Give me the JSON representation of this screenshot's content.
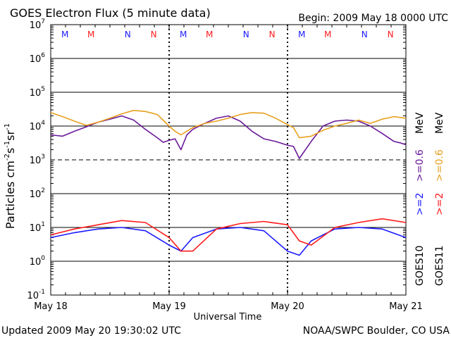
{
  "chart_data": {
    "type": "line",
    "title": "GOES Electron Flux (5 minute data)",
    "begin_label": "Begin: 2009 May 18 0000 UTC",
    "updated_label": "Updated 2009 May 20 19:30:02 UTC",
    "credit_label": "NOAA/SWPC Boulder, CO USA",
    "xlabel": "Universal Time",
    "ylabel": "Particles cm",
    "ylabel_sup1": "-2",
    "ylabel_mid1": "s",
    "ylabel_sup2": "-1",
    "ylabel_mid2": "sr",
    "ylabel_sup3": "-1",
    "yscale": "log",
    "ylim": [
      0.1,
      10000000
    ],
    "xlim": [
      "2009-05-18 00:00",
      "2009-05-21 00:00"
    ],
    "x_ticks": [
      "May 18",
      "May 19",
      "May 20",
      "May 21"
    ],
    "y_ticks": [
      {
        "base": "10",
        "exp": "-1"
      },
      {
        "base": "10",
        "exp": "0"
      },
      {
        "base": "10",
        "exp": "1"
      },
      {
        "base": "10",
        "exp": "2"
      },
      {
        "base": "10",
        "exp": "3"
      },
      {
        "base": "10",
        "exp": "4"
      },
      {
        "base": "10",
        "exp": "5"
      },
      {
        "base": "10",
        "exp": "6"
      },
      {
        "base": "10",
        "exp": "7"
      }
    ],
    "day_markers": [
      {
        "letter": "M",
        "color": "#1a1aff",
        "day": 0.12
      },
      {
        "letter": "M",
        "color": "#ff1a1a",
        "day": 0.34
      },
      {
        "letter": "N",
        "color": "#1a1aff",
        "day": 0.65
      },
      {
        "letter": "N",
        "color": "#ff1a1a",
        "day": 0.87
      },
      {
        "letter": "M",
        "color": "#1a1aff",
        "day": 1.12
      },
      {
        "letter": "M",
        "color": "#ff1a1a",
        "day": 1.34
      },
      {
        "letter": "N",
        "color": "#1a1aff",
        "day": 1.65
      },
      {
        "letter": "N",
        "color": "#ff1a1a",
        "day": 1.87
      },
      {
        "letter": "M",
        "color": "#1a1aff",
        "day": 2.12
      },
      {
        "letter": "M",
        "color": "#ff1a1a",
        "day": 2.34
      },
      {
        "letter": "N",
        "color": "#1a1aff",
        "day": 2.65
      },
      {
        "letter": "N",
        "color": "#ff1a1a",
        "day": 2.87
      }
    ],
    "legend": {
      "goes10": "GOES10",
      "goes11": "GOES11",
      "g10_ge2": ">=2",
      "g10_ge06": ">=0.6",
      "g11_ge2": ">=2",
      "g11_ge06": ">=0.6",
      "mev": "MeV"
    },
    "colors": {
      "goes10_ge2": "#1a1aff",
      "goes11_ge2": "#ff1a1a",
      "goes10_ge06": "#6a1a9a",
      "goes11_ge06": "#e8a020",
      "grid": "#000000"
    },
    "series": [
      {
        "name": ">=0.6 MeV",
        "satellite": "GOES10",
        "color": "#6a1a9a",
        "x": [
          0.0,
          0.1,
          0.2,
          0.3,
          0.4,
          0.5,
          0.6,
          0.7,
          0.8,
          0.9,
          0.95,
          1.0,
          1.05,
          1.1,
          1.15,
          1.2,
          1.3,
          1.4,
          1.5,
          1.6,
          1.7,
          1.8,
          1.9,
          2.0,
          2.05,
          2.1,
          2.2,
          2.3,
          2.4,
          2.5,
          2.6,
          2.7,
          2.8,
          2.9,
          2.95,
          3.0
        ],
        "y": [
          5500,
          5000,
          7000,
          9500,
          13000,
          16000,
          20000,
          15000,
          8000,
          4500,
          3300,
          3800,
          4200,
          2000,
          5500,
          8000,
          12000,
          17000,
          20000,
          14000,
          7000,
          4200,
          3500,
          2700,
          2500,
          1100,
          3500,
          10000,
          14000,
          15000,
          14000,
          10000,
          6000,
          3500,
          3200,
          2800
        ]
      },
      {
        "name": ">=0.6 MeV",
        "satellite": "GOES11",
        "color": "#e8a020",
        "x": [
          0.0,
          0.1,
          0.2,
          0.3,
          0.4,
          0.5,
          0.6,
          0.7,
          0.8,
          0.9,
          1.0,
          1.05,
          1.1,
          1.2,
          1.3,
          1.4,
          1.5,
          1.6,
          1.7,
          1.8,
          1.9,
          2.0,
          2.05,
          2.1,
          2.2,
          2.3,
          2.4,
          2.5,
          2.6,
          2.7,
          2.8,
          2.9,
          3.0
        ],
        "y": [
          25000,
          19000,
          14000,
          10500,
          13000,
          17000,
          23000,
          29000,
          27000,
          22000,
          10000,
          7000,
          5500,
          9000,
          12000,
          14000,
          17000,
          22000,
          25000,
          24000,
          17000,
          11000,
          9000,
          4500,
          5000,
          7500,
          10000,
          12000,
          15000,
          12000,
          16000,
          19000,
          17000
        ]
      },
      {
        "name": ">=2 MeV",
        "satellite": "GOES10",
        "color": "#1a1aff",
        "x": [
          0.0,
          0.2,
          0.4,
          0.6,
          0.8,
          1.0,
          1.1,
          1.2,
          1.4,
          1.6,
          1.8,
          2.0,
          2.1,
          2.2,
          2.4,
          2.6,
          2.8,
          3.0
        ],
        "y": [
          5,
          7,
          9,
          10,
          8,
          3,
          2,
          5,
          9,
          10,
          8,
          2,
          1.5,
          4,
          9,
          10,
          9,
          5
        ]
      },
      {
        "name": ">=2 MeV",
        "satellite": "GOES11",
        "color": "#ff1a1a",
        "x": [
          0.0,
          0.2,
          0.4,
          0.6,
          0.8,
          1.0,
          1.1,
          1.2,
          1.4,
          1.6,
          1.8,
          2.0,
          2.1,
          2.2,
          2.4,
          2.6,
          2.8,
          3.0
        ],
        "y": [
          6,
          9,
          12,
          16,
          14,
          5,
          2,
          2,
          9,
          13,
          15,
          12,
          4,
          3,
          10,
          14,
          18,
          14
        ]
      }
    ]
  }
}
